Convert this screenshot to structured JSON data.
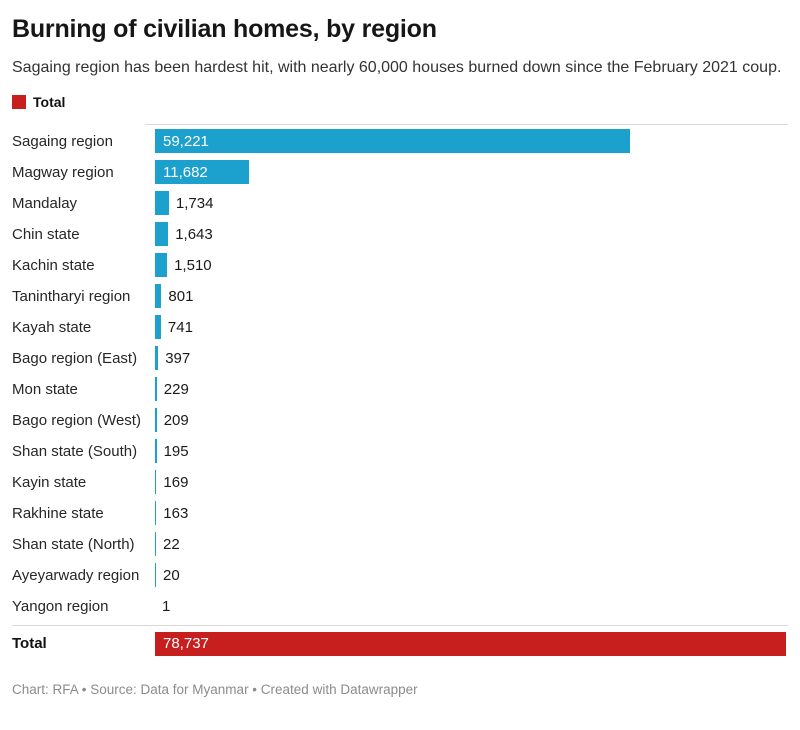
{
  "title": "Burning of civilian homes, by region",
  "subtitle": "Sagaing region has been hardest hit, with nearly 60,000 houses burned down since the February 2021 coup.",
  "legend": {
    "label": "Total",
    "swatch_color": "#C71F1E"
  },
  "colors": {
    "bar": "#1CA0CD",
    "total_bar": "#C71F1E",
    "value_inside": "#ffffff",
    "value_outside": "#1a1a1a",
    "axis_line": "#dadada"
  },
  "chart_data": {
    "type": "bar",
    "orientation": "horizontal",
    "title": "Burning of civilian homes, by region",
    "subtitle": "Sagaing region has been hardest hit, with nearly 60,000 houses burned down since the February 2021 coup.",
    "legend_entries": [
      "Total"
    ],
    "legend_position": "top-left",
    "grid": false,
    "xlim": [
      0,
      78737
    ],
    "categories": [
      "Sagaing region",
      "Magway region",
      "Mandalay",
      "Chin state",
      "Kachin state",
      "Tanintharyi region",
      "Kayah state",
      "Bago region (East)",
      "Mon state",
      "Bago region (West)",
      "Shan state (South)",
      "Kayin state",
      "Rakhine state",
      "Shan state (North)",
      "Ayeyarwady region",
      "Yangon region"
    ],
    "values": [
      59221,
      11682,
      1734,
      1643,
      1510,
      801,
      741,
      397,
      229,
      209,
      195,
      169,
      163,
      22,
      20,
      1
    ],
    "value_labels": [
      "59,221",
      "11,682",
      "1,734",
      "1,643",
      "1,510",
      "801",
      "741",
      "397",
      "229",
      "209",
      "195",
      "169",
      "163",
      "22",
      "20",
      "1"
    ],
    "total": {
      "label": "Total",
      "value": 78737,
      "value_label": "78,737"
    }
  },
  "footer": {
    "credit": "Chart: RFA • Source: Data for Myanmar • Created with Datawrapper"
  }
}
